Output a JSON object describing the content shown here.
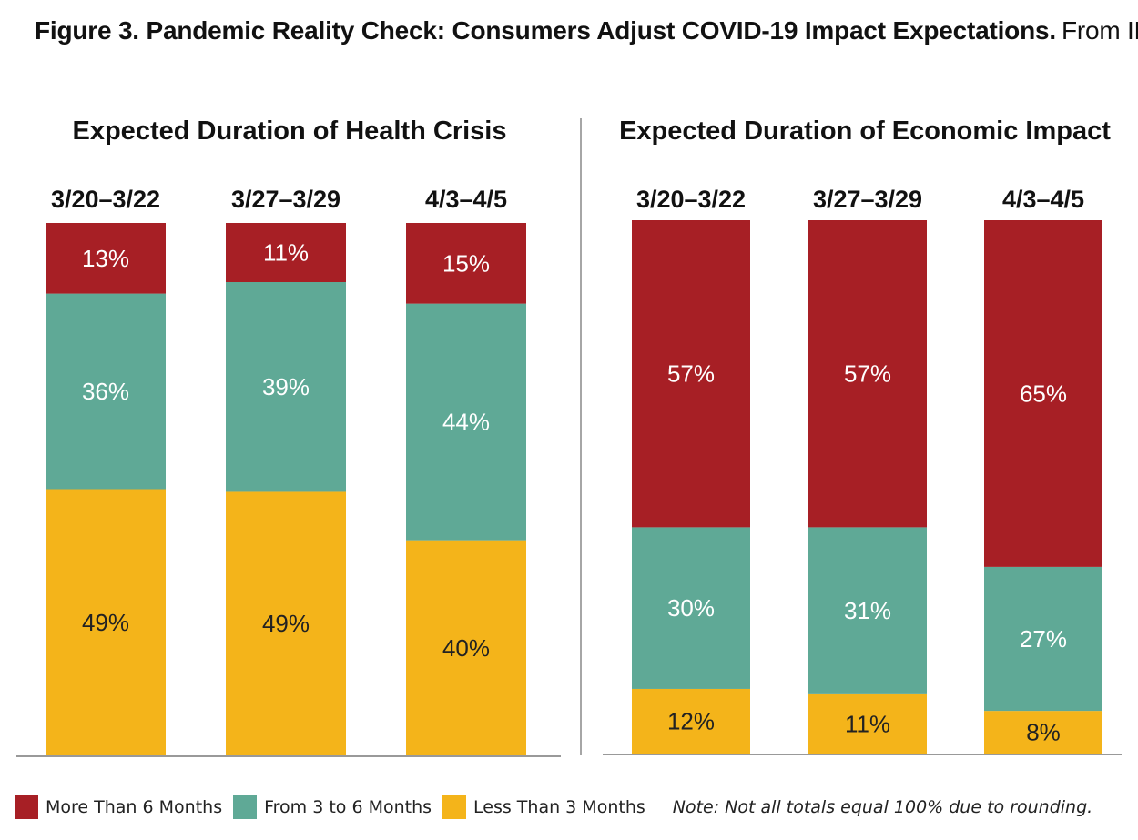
{
  "title": {
    "bold": "Figure 3. Pandemic Reality Check: Consumers Adjust COVID-19 Impact Expectations.",
    "source": "From IRI"
  },
  "colors": {
    "red": "#a71f25",
    "teal": "#5fa996",
    "yellow": "#f4b41a",
    "axis": "#999999",
    "divider": "#888888"
  },
  "legend": {
    "items": [
      {
        "label": "More Than 6 Months",
        "color": "#a71f25"
      },
      {
        "label": "From 3 to 6 Months",
        "color": "#5fa996"
      },
      {
        "label": "Less Than 3 Months",
        "color": "#f4b41a"
      }
    ],
    "note": "Note: Not all totals equal 100% due to rounding."
  },
  "chart_data": [
    {
      "type": "bar",
      "stacked": true,
      "title": "Expected Duration of Health Crisis",
      "categories": [
        "3/20–3/22",
        "3/27–3/29",
        "4/3–4/5"
      ],
      "series": [
        {
          "name": "Less Than 3 Months",
          "values": [
            49,
            49,
            40
          ],
          "labels": [
            "49%",
            "49%",
            "40%"
          ]
        },
        {
          "name": "From 3 to 6 Months",
          "values": [
            36,
            39,
            44
          ],
          "labels": [
            "36%",
            "39%",
            "44%"
          ]
        },
        {
          "name": "More Than 6 Months",
          "values": [
            13,
            11,
            15
          ],
          "labels": [
            "13%",
            "11%",
            "15%"
          ]
        }
      ],
      "ylim": [
        0,
        100
      ]
    },
    {
      "type": "bar",
      "stacked": true,
      "title": "Expected Duration of Economic Impact",
      "categories": [
        "3/20–3/22",
        "3/27–3/29",
        "4/3–4/5"
      ],
      "series": [
        {
          "name": "Less Than 3 Months",
          "values": [
            12,
            11,
            8
          ],
          "labels": [
            "12%",
            "11%",
            "8%"
          ]
        },
        {
          "name": "From 3 to 6 Months",
          "values": [
            30,
            31,
            27
          ],
          "labels": [
            "30%",
            "31%",
            "27%"
          ]
        },
        {
          "name": "More Than 6 Months",
          "values": [
            57,
            57,
            65
          ],
          "labels": [
            "57%",
            "57%",
            "65%"
          ]
        }
      ],
      "ylim": [
        0,
        100
      ]
    }
  ]
}
